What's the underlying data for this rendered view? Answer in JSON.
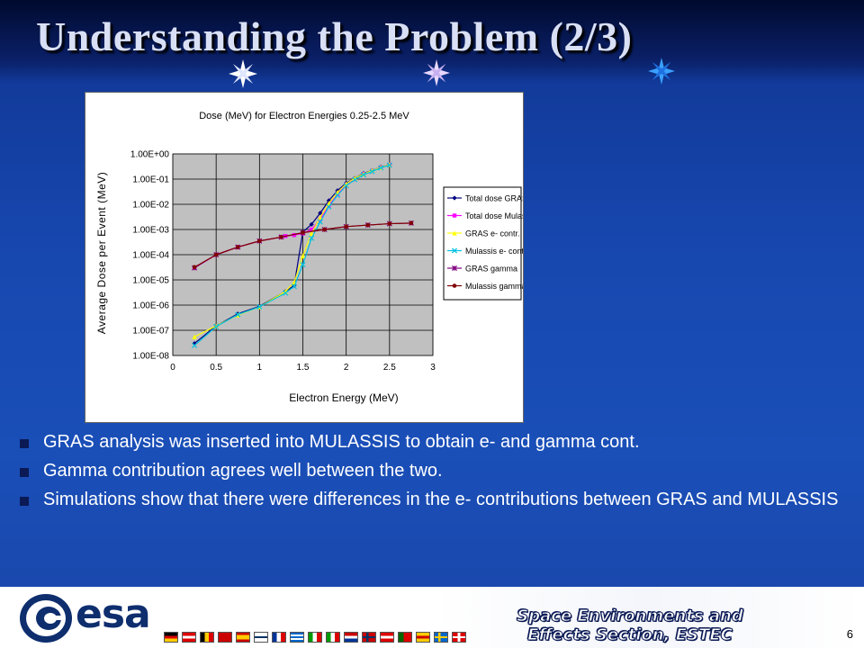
{
  "slide": {
    "title": "Understanding the Problem (2/3)",
    "page_number": "6"
  },
  "chart_data": {
    "type": "line",
    "title": "Dose (MeV) for Electron Energies 0.25-2.5 MeV",
    "xlabel": "Electron Energy (MeV)",
    "ylabel": "Average Dose per Event (MeV)",
    "xlim": [
      0,
      3
    ],
    "ylim": [
      1e-08,
      1
    ],
    "y_scale": "log",
    "x_ticks": [
      "0",
      "0.5",
      "1",
      "1.5",
      "2",
      "2.5",
      "3"
    ],
    "y_ticks": [
      "1.00E-08",
      "1.00E-07",
      "1.00E-06",
      "1.00E-05",
      "1.00E-04",
      "1.00E-03",
      "1.00E-02",
      "1.00E-01",
      "1.00E+00"
    ],
    "grid": true,
    "legend_position": "right",
    "series": [
      {
        "name": "Total dose GRAS",
        "color": "#000080",
        "marker": "diamond",
        "x": [
          0.25,
          0.5,
          0.75,
          1.0,
          1.3,
          1.4,
          1.5,
          1.6,
          1.7,
          1.8,
          1.9,
          2.0,
          2.1,
          2.2,
          2.3,
          2.4,
          2.5
        ],
        "y": [
          3e-08,
          1.5e-07,
          4.5e-07,
          9e-07,
          3.5e-06,
          6e-06,
          0.0008,
          0.0016,
          0.0045,
          0.014,
          0.035,
          0.07,
          0.11,
          0.17,
          0.22,
          0.3,
          0.38
        ]
      },
      {
        "name": "Total dose Mulassis",
        "color": "#ff00ff",
        "marker": "square",
        "x": [
          0.25,
          0.5,
          0.75,
          1.0,
          1.25,
          1.3,
          1.4,
          1.5,
          1.6,
          1.7,
          1.8,
          1.9,
          2.0,
          2.1,
          2.2,
          2.3,
          2.4,
          2.5
        ],
        "y": [
          3e-05,
          0.0001,
          0.0002,
          0.00035,
          0.0005,
          0.00055,
          0.0006,
          0.0007,
          0.001,
          0.0025,
          0.009,
          0.025,
          0.06,
          0.1,
          0.16,
          0.21,
          0.29,
          0.37
        ]
      },
      {
        "name": "GRAS e- contr.",
        "color": "#ffff00",
        "marker": "triangle",
        "x": [
          0.25,
          0.5,
          0.75,
          1.0,
          1.3,
          1.4,
          1.5,
          1.6,
          1.7,
          1.8,
          1.9,
          2.0,
          2.1,
          2.2,
          2.3,
          2.4,
          2.5
        ],
        "y": [
          5.5e-08,
          1.5e-07,
          4e-07,
          8.5e-07,
          3.5e-06,
          8e-06,
          9e-05,
          0.0007,
          0.003,
          0.011,
          0.03,
          0.065,
          0.11,
          0.16,
          0.22,
          0.29,
          0.38
        ]
      },
      {
        "name": "Mulassis e- contr.",
        "color": "#00c0e0",
        "marker": "x",
        "x": [
          0.25,
          0.5,
          0.75,
          1.0,
          1.3,
          1.4,
          1.5,
          1.6,
          1.7,
          1.8,
          1.9,
          2.0,
          2.1,
          2.2,
          2.3,
          2.4,
          2.5
        ],
        "y": [
          2.5e-08,
          1.4e-07,
          4.2e-07,
          8.5e-07,
          3e-06,
          5.5e-06,
          4e-05,
          0.00045,
          0.002,
          0.008,
          0.023,
          0.055,
          0.095,
          0.15,
          0.2,
          0.28,
          0.36
        ]
      },
      {
        "name": "GRAS gamma",
        "color": "#800080",
        "marker": "star",
        "x": [
          0.25,
          0.5,
          0.75,
          1.0,
          1.25,
          1.5,
          1.75,
          2.0,
          2.25,
          2.5,
          2.75
        ],
        "y": [
          3e-05,
          0.0001,
          0.0002,
          0.00035,
          0.0005,
          0.00075,
          0.001,
          0.0013,
          0.0015,
          0.0017,
          0.0018
        ]
      },
      {
        "name": "Mulassis gamma",
        "color": "#800000",
        "marker": "circle",
        "x": [
          0.25,
          0.5,
          0.75,
          1.0,
          1.25,
          1.5,
          1.75,
          2.0,
          2.25,
          2.5,
          2.75
        ],
        "y": [
          3.2e-05,
          0.0001,
          0.0002,
          0.00035,
          0.0005,
          0.00075,
          0.001,
          0.0013,
          0.0015,
          0.0017,
          0.0018
        ]
      }
    ]
  },
  "bullets": [
    "GRAS analysis was inserted into MULASSIS to obtain e- and gamma cont.",
    "Gamma contribution agrees well between the two.",
    "Simulations show that there were differences in the e- contributions between GRAS and MULASSIS"
  ],
  "footer": {
    "logo_text": "esa",
    "section_name_line1": "Space Environments and",
    "section_name_line2": "Effects Section, ESTEC",
    "logo_icon": "esa-globe-icon"
  },
  "colors": {
    "background": "#1a4fb8",
    "title_text": "#d9e0f5",
    "plot_area": "#c0c0c0"
  }
}
